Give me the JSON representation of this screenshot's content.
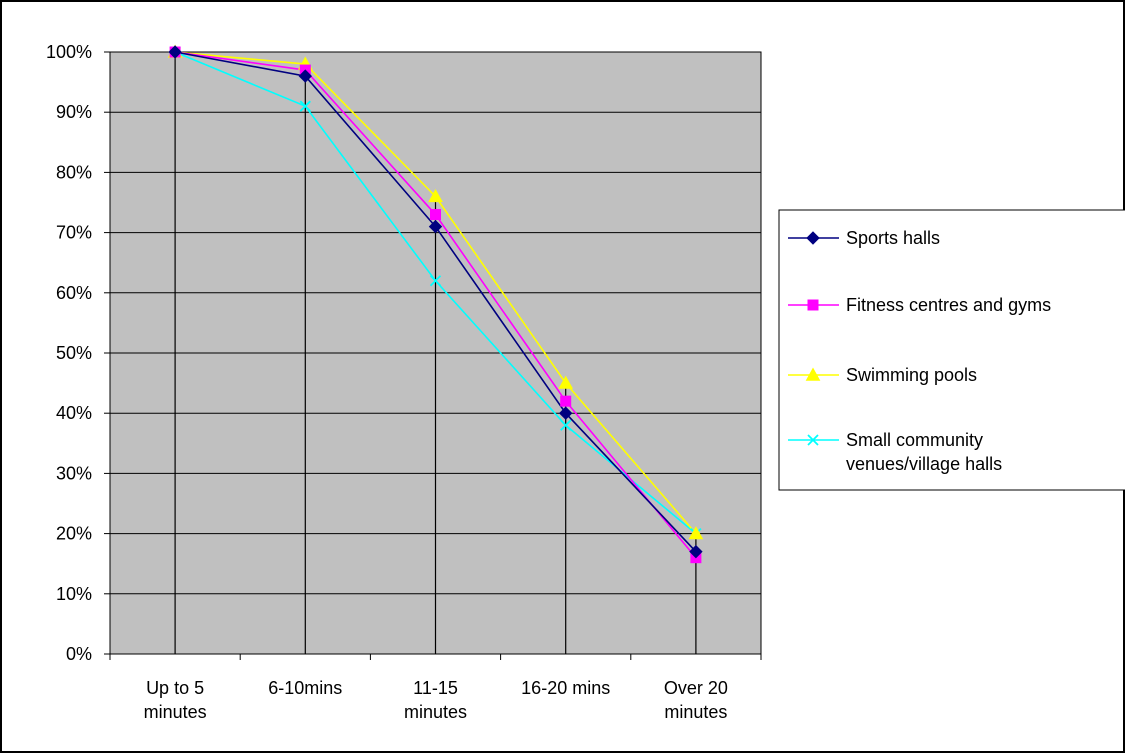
{
  "chart_data": {
    "type": "line",
    "title": "",
    "xlabel": "",
    "ylabel": "",
    "categories": [
      [
        "Up to 5",
        "minutes"
      ],
      [
        "6-10mins"
      ],
      [
        "11-15",
        "minutes"
      ],
      [
        "16-20 mins"
      ],
      [
        "Over 20",
        "minutes"
      ]
    ],
    "y_ticks": [
      "0%",
      "10%",
      "20%",
      "30%",
      "40%",
      "50%",
      "60%",
      "70%",
      "80%",
      "90%",
      "100%"
    ],
    "ylim": [
      0,
      100
    ],
    "y_unit": "%",
    "grid": "horizontal major gridlines",
    "plot_background": "#c0c0c0",
    "legend_position": "right",
    "drop_lines": true,
    "series": [
      {
        "name": "Sports halls",
        "color": "#000080",
        "marker": "diamond",
        "values": [
          100,
          96,
          71,
          40,
          17
        ]
      },
      {
        "name": "Fitness centres and gyms",
        "color": "#ff00ff",
        "marker": "square",
        "values": [
          100,
          97,
          73,
          42,
          16
        ]
      },
      {
        "name": "Swimming pools",
        "color": "#ffff00",
        "marker": "triangle",
        "values": [
          100,
          98,
          76,
          45,
          20
        ]
      },
      {
        "name": [
          "Small community",
          "venues/village halls"
        ],
        "color": "#00ffff",
        "marker": "x",
        "values": [
          100,
          91,
          62,
          38,
          20
        ]
      }
    ]
  }
}
